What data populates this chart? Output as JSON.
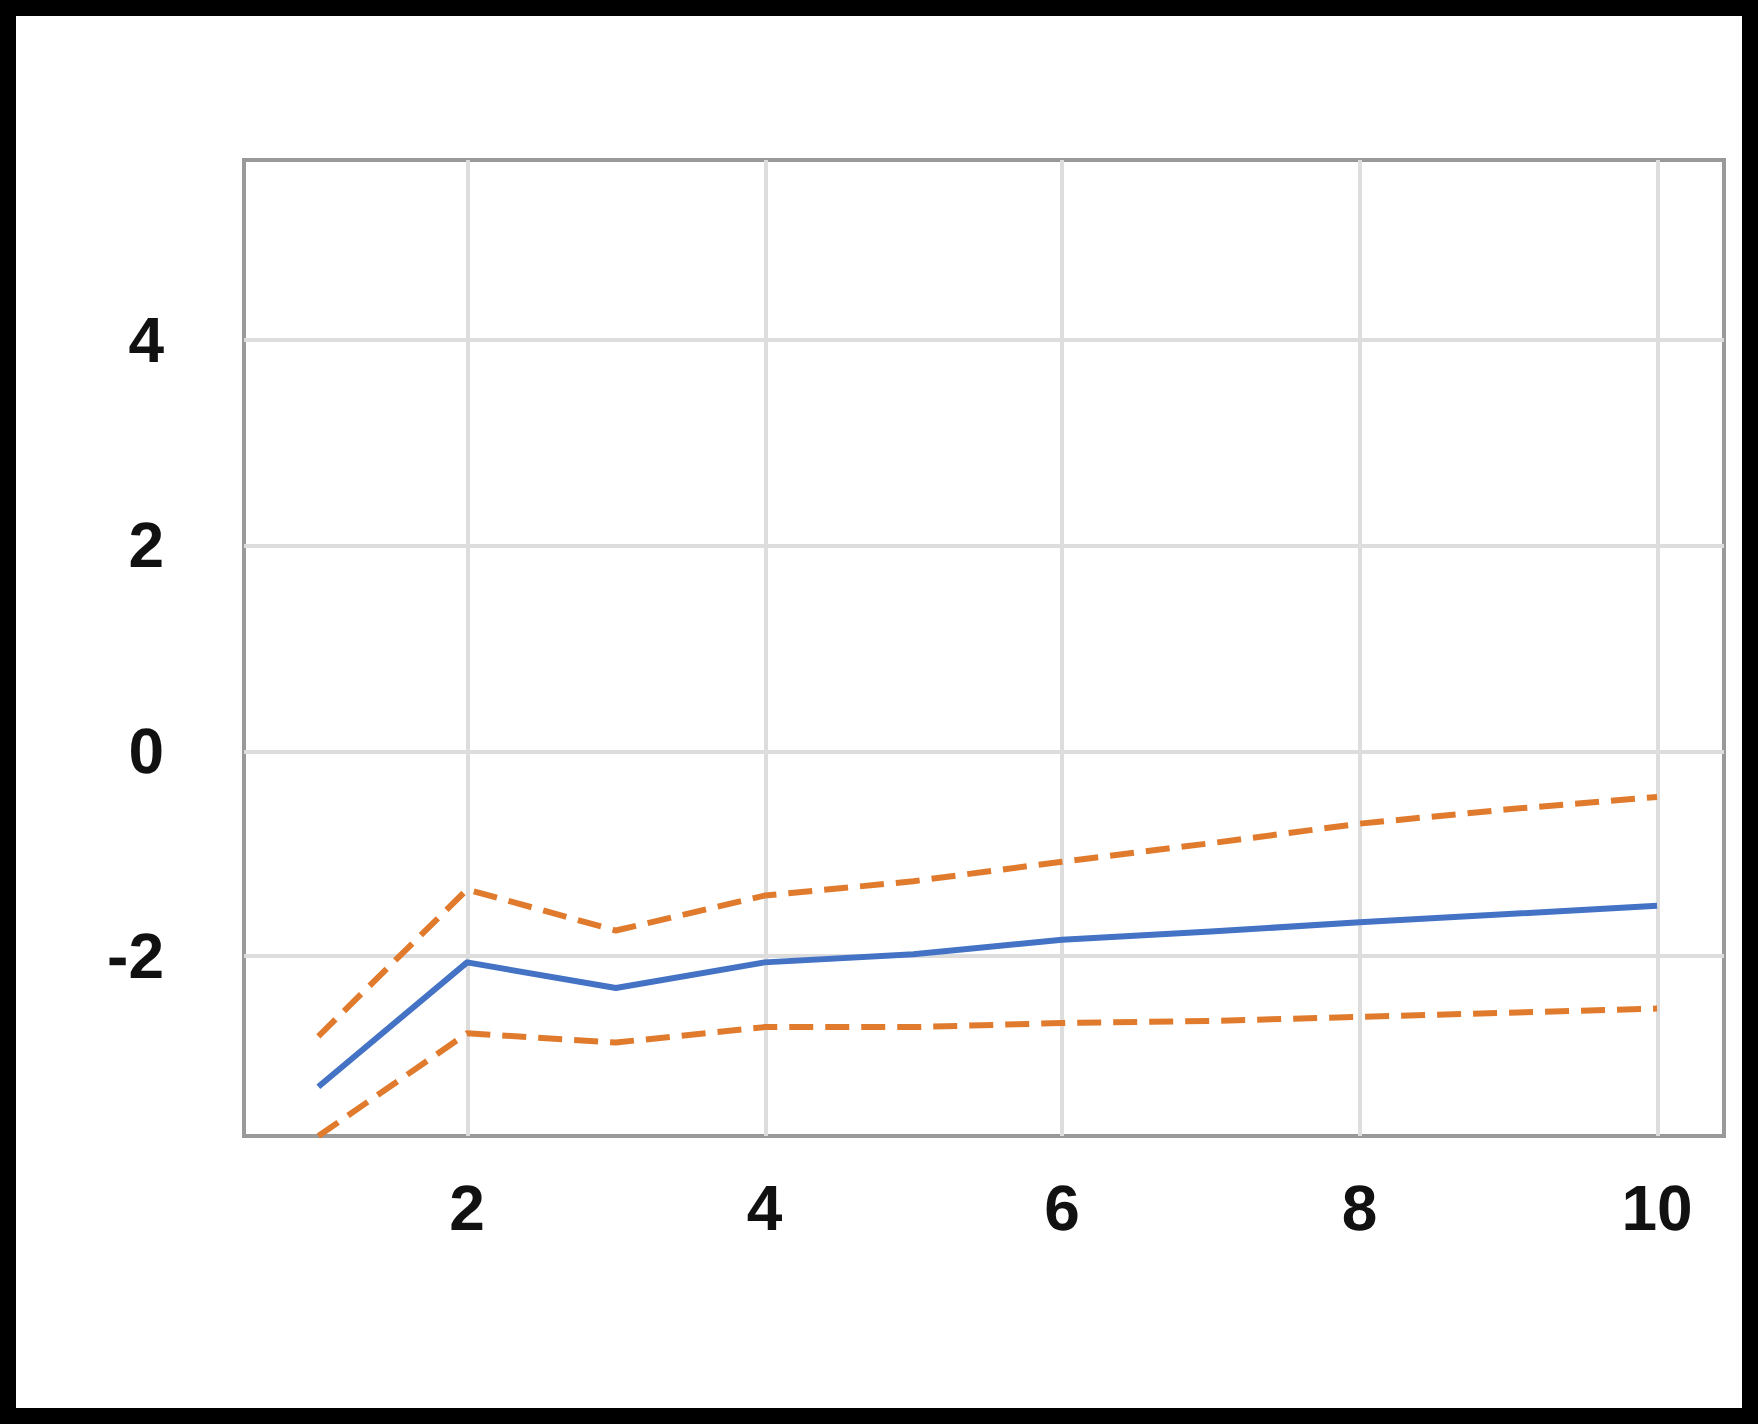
{
  "chart_data": {
    "type": "line",
    "x": [
      1,
      2,
      3,
      4,
      5,
      6,
      7,
      8,
      9,
      10
    ],
    "series": [
      {
        "color": "#4472c4",
        "values": [
          -3.27,
          -2.06,
          -2.31,
          -2.06,
          -1.98,
          -1.84,
          -1.76,
          -1.67,
          -1.59,
          -1.51
        ],
        "line_style": "solid"
      },
      {
        "color": "#e07b2e",
        "values": [
          -2.78,
          -1.35,
          -1.75,
          -1.41,
          -1.27,
          -1.08,
          -0.9,
          -0.71,
          -0.57,
          -0.45
        ],
        "line_style": "dashed"
      },
      {
        "color": "#e07b2e",
        "values": [
          -3.75,
          -2.75,
          -2.84,
          -2.69,
          -2.69,
          -2.65,
          -2.63,
          -2.59,
          -2.55,
          -2.51
        ],
        "line_style": "dashed"
      }
    ],
    "xlim": [
      0.5,
      10.45
    ],
    "xticks": [
      2,
      4,
      6,
      8,
      10
    ],
    "ylim": [
      -3.75,
      5.75
    ],
    "yticks": [
      -2,
      0,
      2,
      4
    ],
    "grid": true,
    "marker": "none"
  }
}
